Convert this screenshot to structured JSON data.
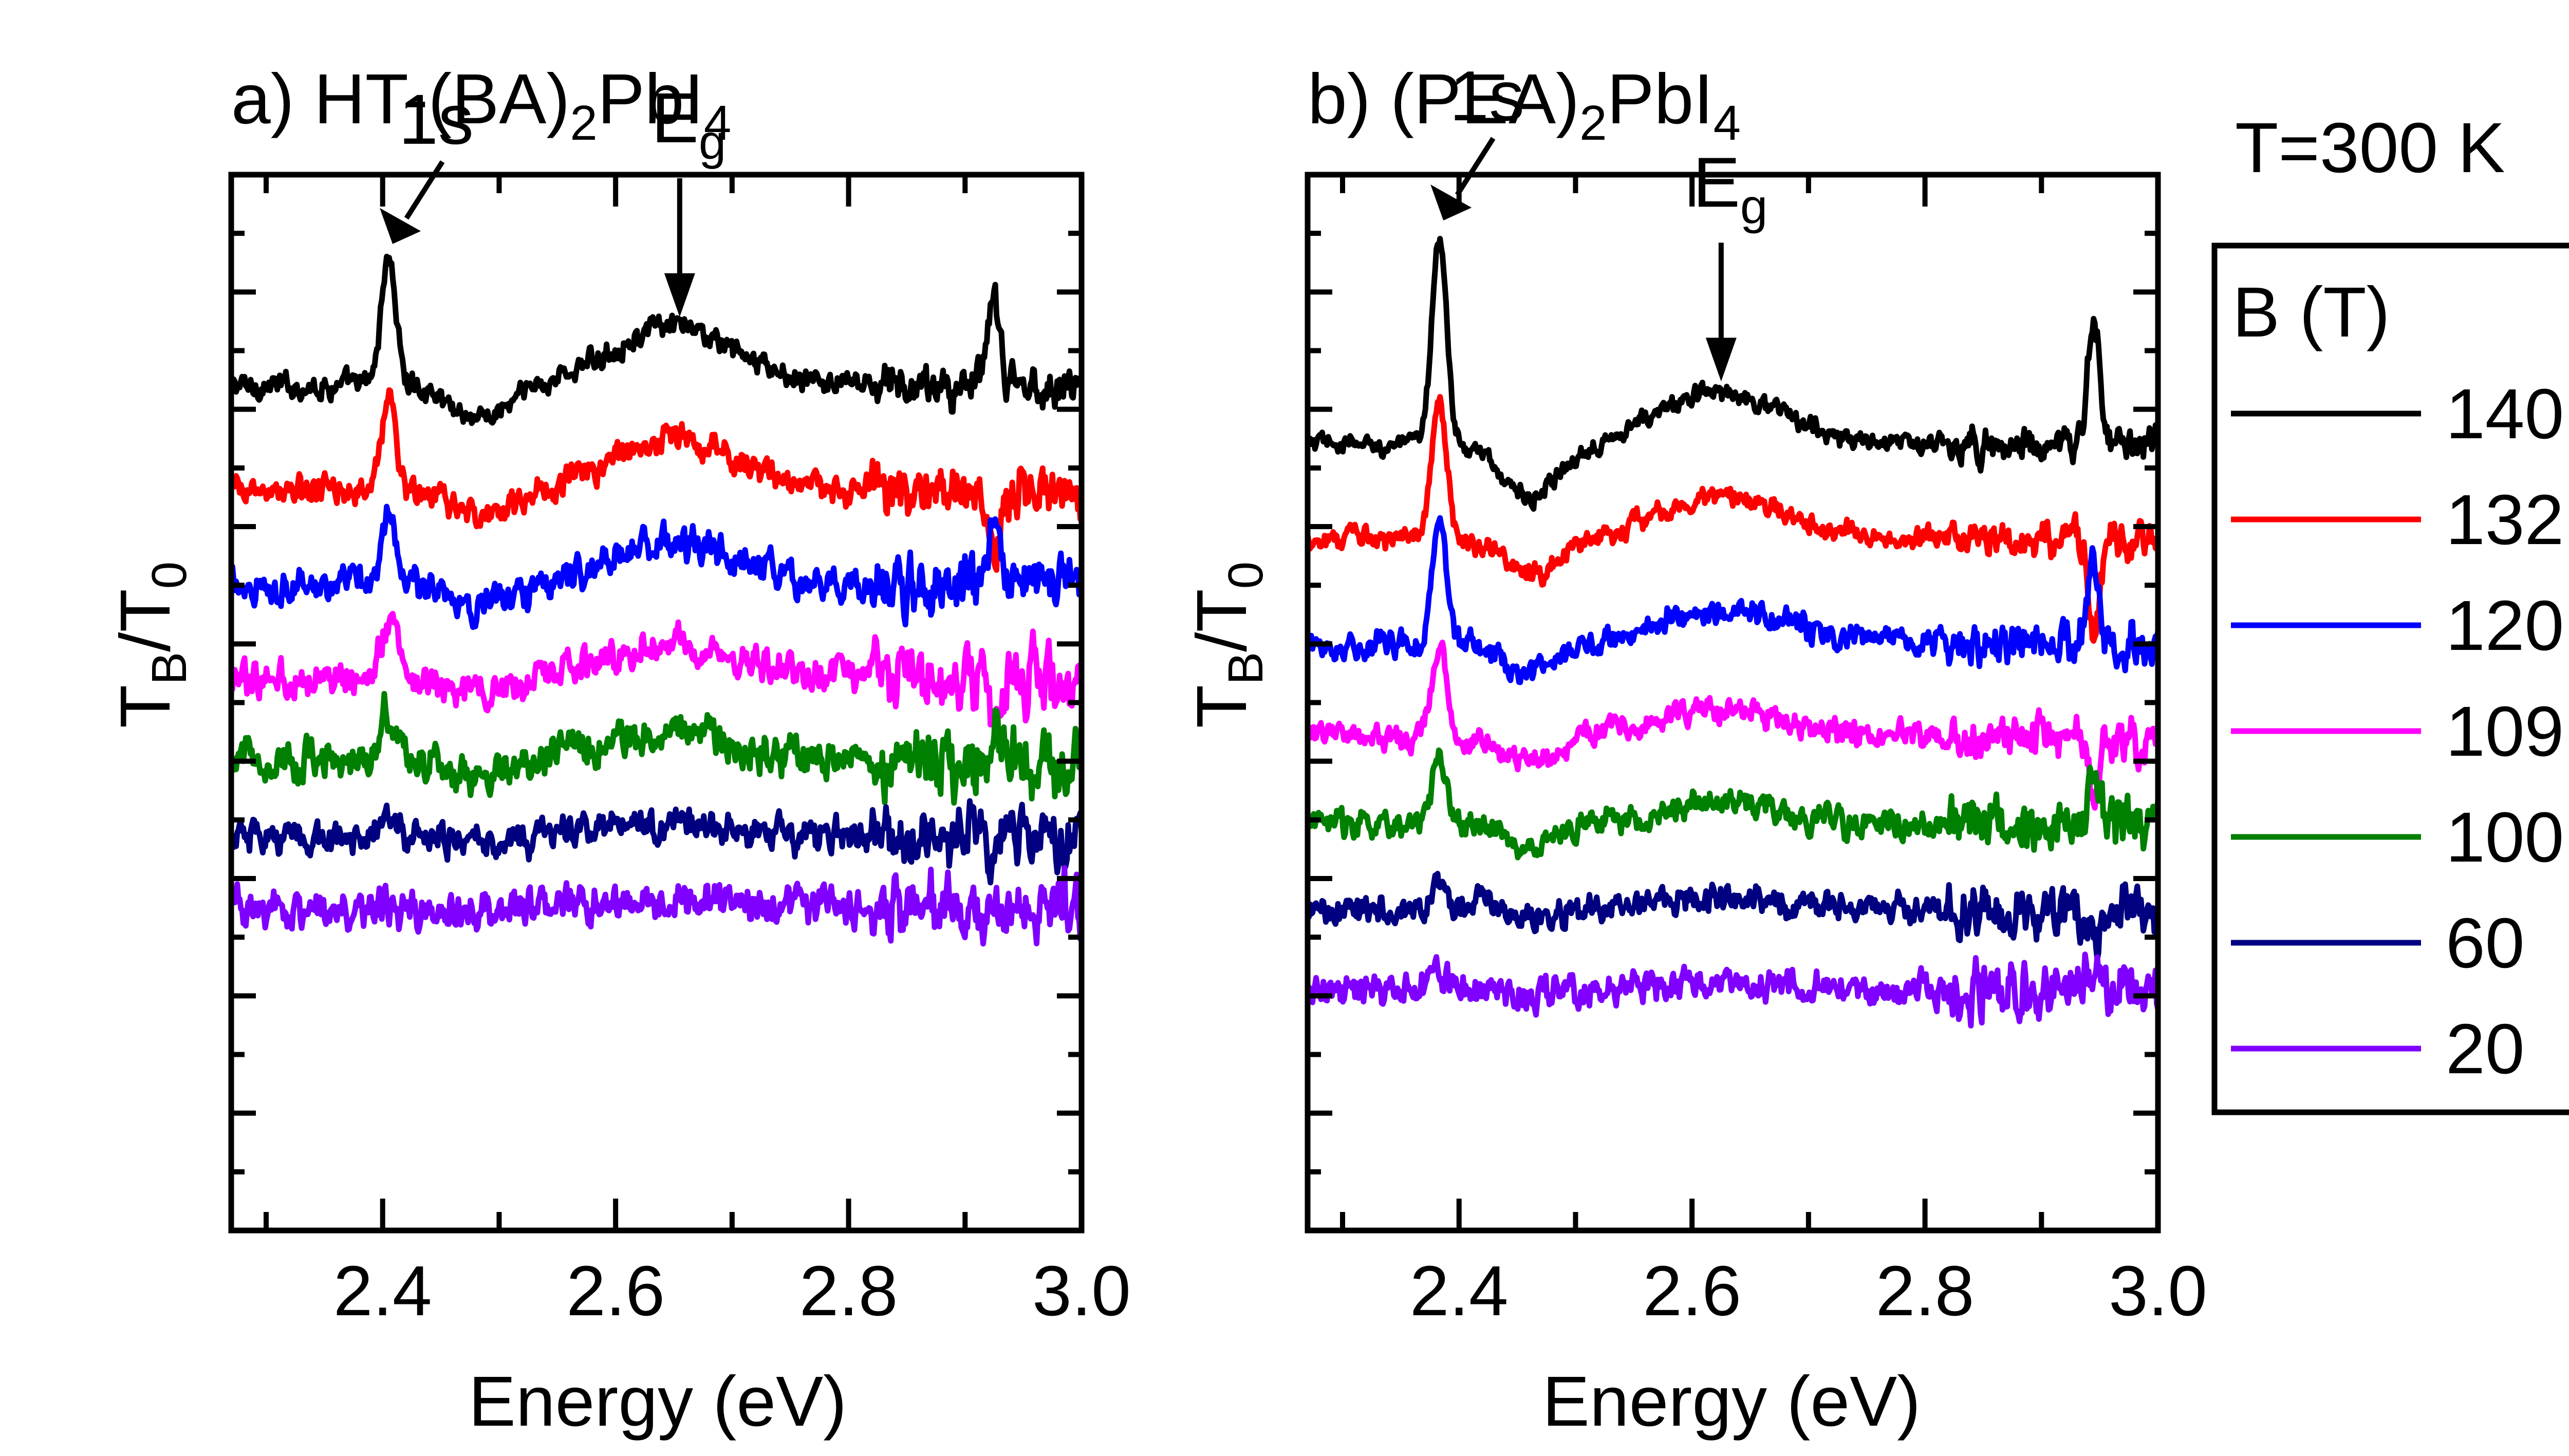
{
  "figure": {
    "temperature_label": "T=300 K"
  },
  "legend": {
    "title": "B (T)",
    "entries": [
      {
        "label": "140",
        "color": "#000000"
      },
      {
        "label": "132",
        "color": "#ff0000"
      },
      {
        "label": "120",
        "color": "#0000ff"
      },
      {
        "label": "109",
        "color": "#ff00ff"
      },
      {
        "label": "100",
        "color": "#008000"
      },
      {
        "label": "60",
        "color": "#000080"
      },
      {
        "label": "20",
        "color": "#8000ff"
      }
    ]
  },
  "chart_data": [
    {
      "type": "line",
      "panel_prefix": "a) HT-(BA)",
      "sub1": "2",
      "mid": "PbI",
      "sub2": "4",
      "title": "a) HT-(BA)2PbI4",
      "xlabel": "Energy (eV)",
      "ylabel_main": "T",
      "ylabel_sub1": "B",
      "ylabel_sep": "/T",
      "ylabel_sub2": "0",
      "ylabel": "TB/T0",
      "xlim": [
        2.27,
        3.0
      ],
      "ylim": [
        0,
        9
      ],
      "xticks": [
        "2.4",
        "2.6",
        "2.8",
        "3.0"
      ],
      "grid": false,
      "annotations": [
        {
          "text": "1s",
          "x": 2.405
        },
        {
          "text_main": "E",
          "text_sub": "g",
          "text": "Eg",
          "x": 2.655
        }
      ],
      "peaks": {
        "exciton_x": 2.405,
        "gap_x": 2.65,
        "noise_x": 2.925
      },
      "series": [
        {
          "name": "140",
          "offset": 7.2,
          "exciton_amp": 1.1,
          "gap_amp": 0.5,
          "noise": 0.12
        },
        {
          "name": "132",
          "offset": 6.3,
          "exciton_amp": 0.8,
          "gap_amp": 0.45,
          "noise": 0.15
        },
        {
          "name": "120",
          "offset": 5.5,
          "exciton_amp": 0.65,
          "gap_amp": 0.35,
          "noise": 0.17
        },
        {
          "name": "109",
          "offset": 4.7,
          "exciton_amp": 0.5,
          "gap_amp": 0.3,
          "noise": 0.18
        },
        {
          "name": "100",
          "offset": 4.0,
          "exciton_amp": 0.45,
          "gap_amp": 0.25,
          "noise": 0.2
        },
        {
          "name": "60",
          "offset": 3.35,
          "exciton_amp": 0.15,
          "gap_amp": 0.1,
          "noise": 0.17
        },
        {
          "name": "20",
          "offset": 2.75,
          "exciton_amp": 0.05,
          "gap_amp": 0.05,
          "noise": 0.19
        }
      ]
    },
    {
      "type": "line",
      "panel_prefix": "b) (PEA)",
      "sub1": "2",
      "mid": "PbI",
      "sub2": "4",
      "title": "b) (PEA)2PbI4",
      "xlabel": "Energy (eV)",
      "ylabel_main": "T",
      "ylabel_sub1": "B",
      "ylabel_sep": "/T",
      "ylabel_sub2": "0",
      "ylabel": "TB/T0",
      "xlim": [
        2.27,
        3.0
      ],
      "ylim": [
        0,
        9
      ],
      "xticks": [
        "2.4",
        "2.6",
        "2.8",
        "3.0"
      ],
      "grid": false,
      "annotations": [
        {
          "text": "1s",
          "x": 2.383
        },
        {
          "text_main": "E",
          "text_sub": "g",
          "text": "Eg",
          "x": 2.625
        }
      ],
      "peaks": {
        "exciton_x": 2.383,
        "gap_x": 2.625,
        "noise_x": 2.945
      },
      "series": [
        {
          "name": "140",
          "offset": 6.7,
          "exciton_amp": 1.8,
          "gap_amp": 0.45,
          "noise": 0.1
        },
        {
          "name": "132",
          "offset": 5.9,
          "exciton_amp": 1.2,
          "gap_amp": 0.35,
          "noise": 0.11
        },
        {
          "name": "120",
          "offset": 5.0,
          "exciton_amp": 1.0,
          "gap_amp": 0.3,
          "noise": 0.13
        },
        {
          "name": "109",
          "offset": 4.2,
          "exciton_amp": 0.8,
          "gap_amp": 0.25,
          "noise": 0.13
        },
        {
          "name": "100",
          "offset": 3.45,
          "exciton_amp": 0.6,
          "gap_amp": 0.2,
          "noise": 0.14
        },
        {
          "name": "60",
          "offset": 2.75,
          "exciton_amp": 0.3,
          "gap_amp": 0.1,
          "noise": 0.15
        },
        {
          "name": "20",
          "offset": 2.05,
          "exciton_amp": 0.15,
          "gap_amp": 0.05,
          "noise": 0.16
        }
      ]
    }
  ]
}
